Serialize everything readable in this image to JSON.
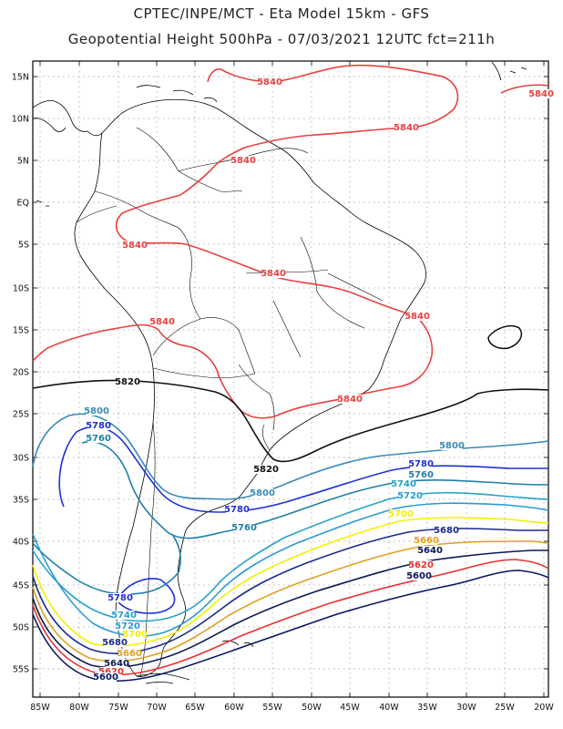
{
  "header": {
    "line1": "CPTEC/INPE/MCT  -   Eta Model 15km  -  GFS",
    "line2": "Geopotential Height 500hPa  -  07/03/2021 12UTC fct=211h"
  },
  "axes": {
    "lat_labels": [
      "15N",
      "10N",
      "5N",
      "EQ",
      "5S",
      "10S",
      "15S",
      "20S",
      "25S",
      "30S",
      "35S",
      "40S",
      "45S",
      "50S",
      "55S"
    ],
    "lon_labels": [
      "85W",
      "80W",
      "75W",
      "70W",
      "65W",
      "60W",
      "55W",
      "50W",
      "45W",
      "40W",
      "35W",
      "30W",
      "25W",
      "20W"
    ]
  },
  "contour_colors": {
    "5840": "#e84040",
    "5820": "#111111",
    "5800": "#3a8ab8",
    "5780": "#2030d0",
    "5760": "#1f7fa8",
    "5740": "#27a2c8",
    "5720": "#2b9ad0",
    "5700": "#f2f200",
    "5680": "#1a2a8a",
    "5660": "#e0a020",
    "5640": "#0a1a50",
    "5620": "#e83030",
    "5600": "#0a1560"
  },
  "contour_labels": [
    {
      "text": "5840",
      "color_key": "5840"
    },
    {
      "text": "5840",
      "color_key": "5840"
    },
    {
      "text": "5840",
      "color_key": "5840"
    },
    {
      "text": "5840",
      "color_key": "5840"
    },
    {
      "text": "5840",
      "color_key": "5840"
    },
    {
      "text": "5840",
      "color_key": "5840"
    },
    {
      "text": "5840",
      "color_key": "5840"
    },
    {
      "text": "5840",
      "color_key": "5840"
    },
    {
      "text": "5840",
      "color_key": "5840"
    },
    {
      "text": "5820",
      "color_key": "5820"
    },
    {
      "text": "5820",
      "color_key": "5820"
    },
    {
      "text": "5800",
      "color_key": "5800"
    },
    {
      "text": "5800",
      "color_key": "5800"
    },
    {
      "text": "5800",
      "color_key": "5800"
    },
    {
      "text": "5780",
      "color_key": "5780"
    },
    {
      "text": "5780",
      "color_key": "5780"
    },
    {
      "text": "5780",
      "color_key": "5780"
    },
    {
      "text": "5780",
      "color_key": "5780"
    },
    {
      "text": "5760",
      "color_key": "5760"
    },
    {
      "text": "5760",
      "color_key": "5760"
    },
    {
      "text": "5760",
      "color_key": "5760"
    },
    {
      "text": "5740",
      "color_key": "5740"
    },
    {
      "text": "5740",
      "color_key": "5740"
    },
    {
      "text": "5720",
      "color_key": "5720"
    },
    {
      "text": "5720",
      "color_key": "5720"
    },
    {
      "text": "5700",
      "color_key": "5700"
    },
    {
      "text": "5700",
      "color_key": "5700"
    },
    {
      "text": "5680",
      "color_key": "5680"
    },
    {
      "text": "5680",
      "color_key": "5680"
    },
    {
      "text": "5660",
      "color_key": "5660"
    },
    {
      "text": "5660",
      "color_key": "5660"
    },
    {
      "text": "5640",
      "color_key": "5640"
    },
    {
      "text": "5640",
      "color_key": "5640"
    },
    {
      "text": "5620",
      "color_key": "5620"
    },
    {
      "text": "5620",
      "color_key": "5620"
    },
    {
      "text": "5600",
      "color_key": "5600"
    },
    {
      "text": "5600",
      "color_key": "5600"
    }
  ]
}
